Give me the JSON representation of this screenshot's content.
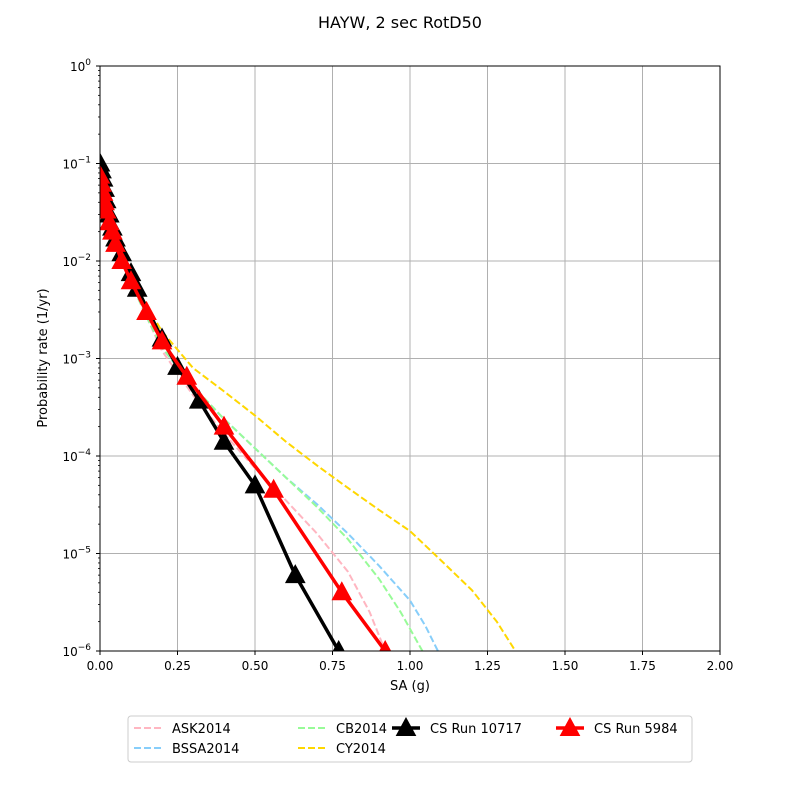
{
  "chart_data": {
    "type": "line",
    "title": "HAYW, 2 sec RotD50",
    "xlabel": "SA (g)",
    "ylabel": "Probability rate (1/yr)",
    "xlim": [
      0,
      2
    ],
    "ylim": [
      1e-06,
      1
    ],
    "yscale": "log",
    "grid": true,
    "legend_position": "bottom-center",
    "x_ticks": [
      "0.00",
      "0.25",
      "0.50",
      "0.75",
      "1.00",
      "1.25",
      "1.50",
      "1.75",
      "2.00"
    ],
    "y_ticks": [
      {
        "base": "10",
        "exp": "0"
      },
      {
        "base": "10",
        "exp": "−1"
      },
      {
        "base": "10",
        "exp": "−2"
      },
      {
        "base": "10",
        "exp": "−3"
      },
      {
        "base": "10",
        "exp": "−4"
      },
      {
        "base": "10",
        "exp": "−5"
      },
      {
        "base": "10",
        "exp": "−6"
      }
    ],
    "series": [
      {
        "name": "ASK2014",
        "color": "#ffb6c1",
        "style": "dashed",
        "marker": "none",
        "points": [
          [
            0.0,
            0.06
          ],
          [
            0.02,
            0.03
          ],
          [
            0.05,
            0.015
          ],
          [
            0.1,
            0.006
          ],
          [
            0.15,
            0.0027
          ],
          [
            0.2,
            0.0012
          ],
          [
            0.3,
            0.00042
          ],
          [
            0.4,
            0.00017
          ],
          [
            0.5,
            7.5e-05
          ],
          [
            0.6,
            3.5e-05
          ],
          [
            0.7,
            1.6e-05
          ],
          [
            0.8,
            6.5e-06
          ],
          [
            0.87,
            2.5e-06
          ],
          [
            0.92,
            1e-06
          ]
        ]
      },
      {
        "name": "BSSA2014",
        "color": "#87cefa",
        "style": "dashed",
        "marker": "none",
        "points": [
          [
            0.0,
            0.06
          ],
          [
            0.02,
            0.03
          ],
          [
            0.05,
            0.015
          ],
          [
            0.1,
            0.006
          ],
          [
            0.15,
            0.0027
          ],
          [
            0.2,
            0.0013
          ],
          [
            0.3,
            0.0005
          ],
          [
            0.4,
            0.00024
          ],
          [
            0.5,
            0.00012
          ],
          [
            0.6,
            6e-05
          ],
          [
            0.7,
            3.2e-05
          ],
          [
            0.8,
            1.6e-05
          ],
          [
            0.9,
            7.5e-06
          ],
          [
            1.0,
            3.3e-06
          ],
          [
            1.05,
            1.8e-06
          ],
          [
            1.09,
            1e-06
          ]
        ]
      },
      {
        "name": "CB2014",
        "color": "#98fb98",
        "style": "dashed",
        "marker": "none",
        "points": [
          [
            0.0,
            0.06
          ],
          [
            0.02,
            0.03
          ],
          [
            0.05,
            0.015
          ],
          [
            0.1,
            0.006
          ],
          [
            0.15,
            0.0027
          ],
          [
            0.2,
            0.0013
          ],
          [
            0.3,
            0.00052
          ],
          [
            0.4,
            0.00024
          ],
          [
            0.5,
            0.00012
          ],
          [
            0.6,
            6e-05
          ],
          [
            0.7,
            3e-05
          ],
          [
            0.8,
            1.4e-05
          ],
          [
            0.9,
            5.5e-06
          ],
          [
            0.97,
            2.5e-06
          ],
          [
            1.04,
            1e-06
          ]
        ]
      },
      {
        "name": "CY2014",
        "color": "#ffd700",
        "style": "dashed",
        "marker": "none",
        "points": [
          [
            0.0,
            0.06
          ],
          [
            0.02,
            0.03
          ],
          [
            0.05,
            0.016
          ],
          [
            0.1,
            0.007
          ],
          [
            0.15,
            0.0035
          ],
          [
            0.2,
            0.0019
          ],
          [
            0.3,
            0.0008
          ],
          [
            0.4,
            0.00046
          ],
          [
            0.5,
            0.00026
          ],
          [
            0.6,
            0.00014
          ],
          [
            0.7,
            8e-05
          ],
          [
            0.8,
            4.7e-05
          ],
          [
            0.9,
            2.8e-05
          ],
          [
            1.0,
            1.7e-05
          ],
          [
            1.1,
            8.5e-06
          ],
          [
            1.2,
            4.2e-06
          ],
          [
            1.28,
            2e-06
          ],
          [
            1.34,
            1e-06
          ]
        ]
      },
      {
        "name": "CS Run 10717",
        "color": "#000000",
        "style": "solid",
        "marker": "triangle",
        "points": [
          [
            0.0,
            0.1
          ],
          [
            0.005,
            0.085
          ],
          [
            0.01,
            0.07
          ],
          [
            0.015,
            0.055
          ],
          [
            0.02,
            0.042
          ],
          [
            0.03,
            0.03
          ],
          [
            0.04,
            0.022
          ],
          [
            0.05,
            0.017
          ],
          [
            0.07,
            0.012
          ],
          [
            0.1,
            0.0075
          ],
          [
            0.12,
            0.0052
          ],
          [
            0.2,
            0.0016
          ],
          [
            0.25,
            0.00082
          ],
          [
            0.32,
            0.00037
          ],
          [
            0.4,
            0.00014
          ],
          [
            0.5,
            5e-05
          ],
          [
            0.63,
            6e-06
          ],
          [
            0.77,
            1e-06
          ]
        ]
      },
      {
        "name": "CS Run 5984",
        "color": "#ff0000",
        "style": "solid",
        "marker": "triangle",
        "points": [
          [
            0.0,
            0.075
          ],
          [
            0.005,
            0.062
          ],
          [
            0.01,
            0.05
          ],
          [
            0.015,
            0.04
          ],
          [
            0.02,
            0.033
          ],
          [
            0.03,
            0.025
          ],
          [
            0.04,
            0.02
          ],
          [
            0.05,
            0.015
          ],
          [
            0.07,
            0.01
          ],
          [
            0.1,
            0.0062
          ],
          [
            0.15,
            0.003
          ],
          [
            0.2,
            0.0015
          ],
          [
            0.28,
            0.00065
          ],
          [
            0.4,
            0.0002
          ],
          [
            0.56,
            4.5e-05
          ],
          [
            0.78,
            4e-06
          ],
          [
            0.92,
            1e-06
          ]
        ]
      }
    ]
  }
}
